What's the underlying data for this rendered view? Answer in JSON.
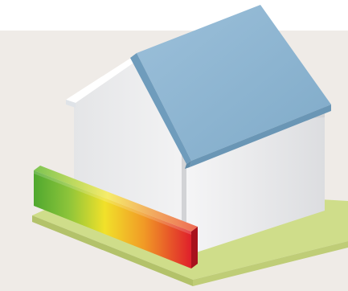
{
  "scene": {
    "subject": "house-with-energy-rating-bar",
    "colors": {
      "top_band": "#ffffff",
      "background": "#efebe7",
      "roof_top": "#8fb7d4",
      "roof_edge": "#6e9ab8",
      "house_front": "#e9eaec",
      "house_side": "#dfe0e2",
      "ground_top": "#cfdd8a",
      "ground_edge": "#b6c46e",
      "bar_green": "#5db02f",
      "bar_yellow": "#f3e22a",
      "bar_orange": "#f08a23",
      "bar_red": "#e0202a"
    }
  }
}
